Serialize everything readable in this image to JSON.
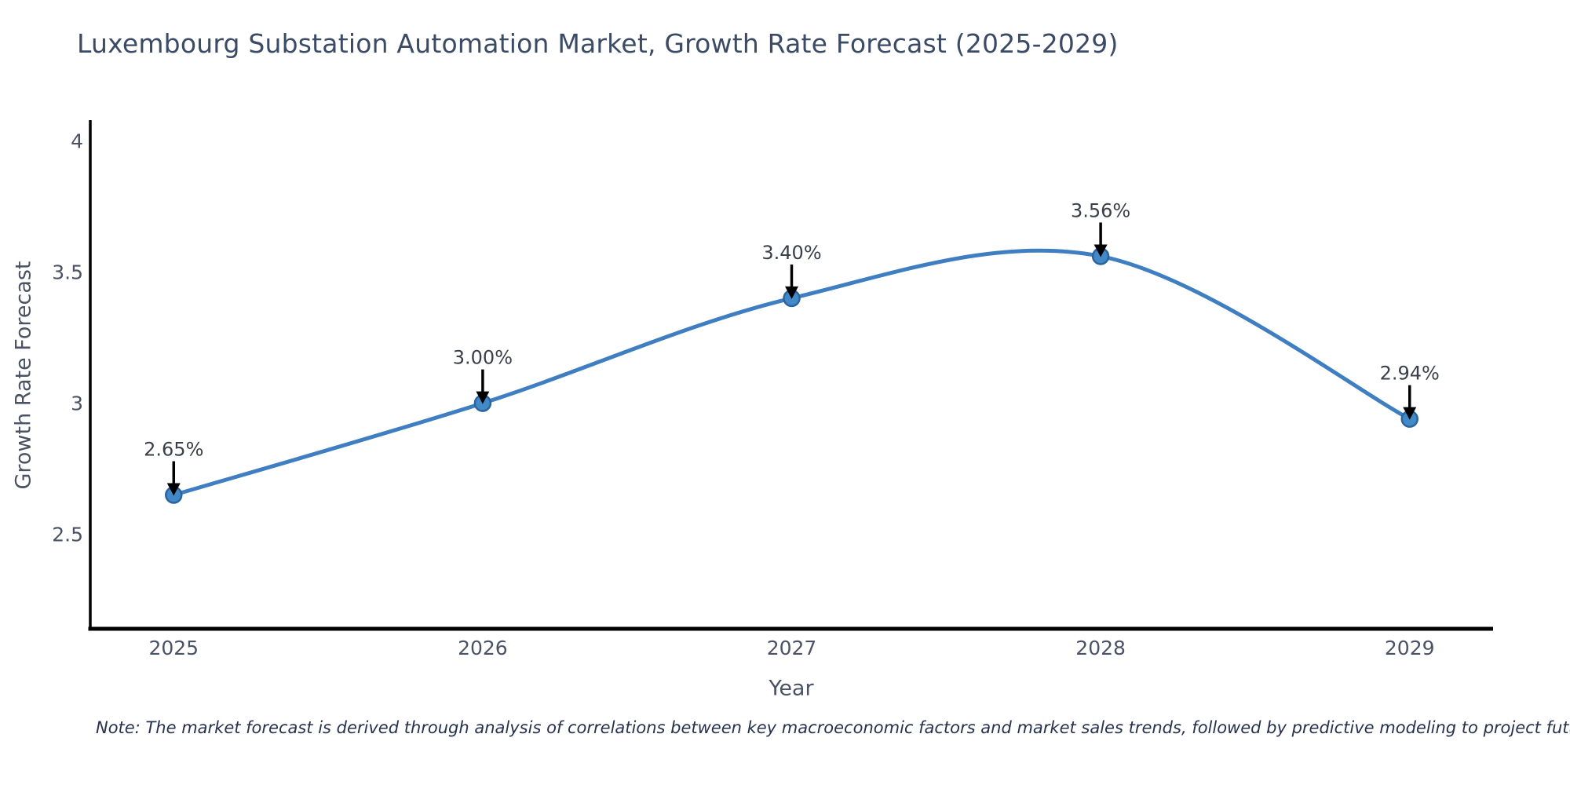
{
  "title": "Luxembourg Substation Automation Market, Growth Rate Forecast (2025-2029)",
  "note": "Note: The market forecast is derived through analysis of correlations between key macroeconomic factors and market sales trends, followed by predictive modeling to project future sales",
  "chart_data": {
    "type": "line",
    "title": "Luxembourg Substation Automation Market, Growth Rate Forecast (2025-2029)",
    "xlabel": "Year",
    "ylabel": "Growth Rate Forecast",
    "x": [
      2025,
      2026,
      2027,
      2028,
      2029
    ],
    "series": [
      {
        "name": "Growth Rate Forecast",
        "values": [
          2.65,
          3.0,
          3.4,
          3.56,
          2.94
        ]
      }
    ],
    "point_labels": [
      "2.65%",
      "3.00%",
      "3.40%",
      "3.56%",
      "2.94%"
    ],
    "xtick_labels": [
      "2025",
      "2026",
      "2027",
      "2028",
      "2029"
    ],
    "yticks": [
      2.5,
      3,
      3.5,
      4
    ],
    "ytick_labels": [
      "2.5",
      "3",
      "3.5",
      "4"
    ],
    "xlim": [
      2024.73,
      2029.27
    ],
    "ylim": [
      2.14,
      4.07
    ],
    "grid": false,
    "legend": "none",
    "smooth": true,
    "colors": {
      "line": "#3f7fc1",
      "marker_fill": "#4289c7",
      "marker_edge": "#2c649e",
      "spine": "#000000",
      "arrow": "#000000",
      "annotation_text": "#3a3f49",
      "tick_text": "#4a5263",
      "title_text": "#3b4b66",
      "note_text": "#26324e"
    }
  }
}
